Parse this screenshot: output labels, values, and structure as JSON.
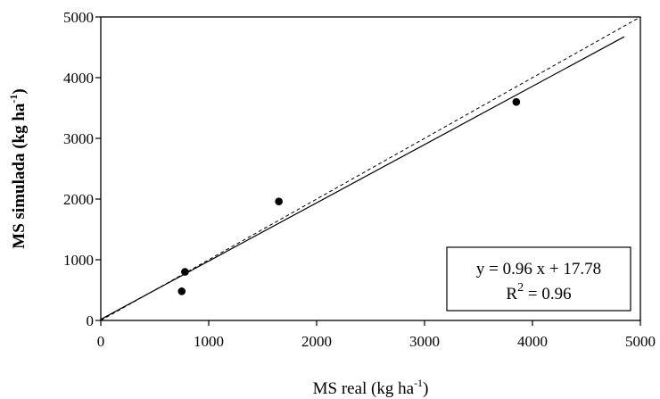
{
  "chart_data": {
    "type": "scatter",
    "xlabel": "MS real (kg ha-1)",
    "ylabel": "MS simulada (kg ha-1)",
    "xlabel_parts": {
      "main": "MS real (kg ha",
      "sup": "-1",
      "end": ")"
    },
    "ylabel_parts": {
      "main": "MS  simulada (kg ha",
      "sup": "-1",
      "end": ")"
    },
    "xlim": [
      0,
      5000
    ],
    "ylim": [
      0,
      5000
    ],
    "x_ticks": [
      0,
      1000,
      2000,
      3000,
      4000,
      5000
    ],
    "y_ticks": [
      0,
      1000,
      2000,
      3000,
      4000,
      5000
    ],
    "x_tick_labels": [
      "0",
      "1000",
      "2000",
      "3000",
      "4000",
      "5000"
    ],
    "y_tick_labels": [
      "0",
      "1000",
      "2000",
      "3000",
      "4000",
      "5000"
    ],
    "grid": false,
    "points": [
      {
        "x": 750,
        "y": 480
      },
      {
        "x": 780,
        "y": 800
      },
      {
        "x": 1650,
        "y": 1960
      },
      {
        "x": 3850,
        "y": 3600
      }
    ],
    "regression_line": {
      "slope": 0.96,
      "intercept": 17.78,
      "x_range": [
        0,
        4850
      ]
    },
    "reference_line_1to1": {
      "x_range": [
        0,
        5000
      ],
      "style": "dashed"
    },
    "annotation": {
      "equation": "y = 0.96 x + 17.78",
      "r2_main": "R",
      "r2_sup": "2",
      "r2_value": " = 0.96",
      "position": "bottom-right"
    }
  }
}
